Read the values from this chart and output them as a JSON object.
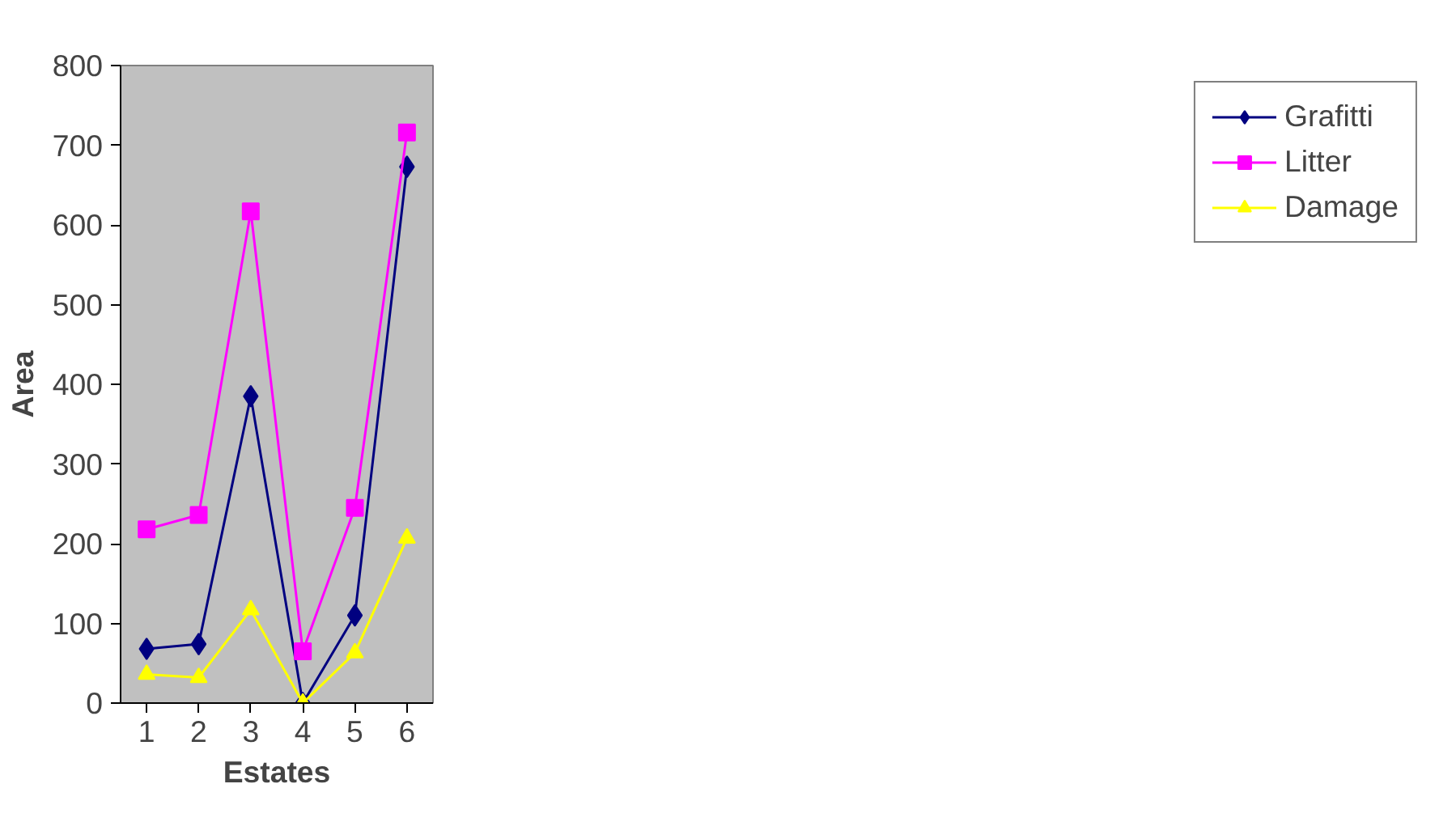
{
  "chart_data": {
    "type": "line",
    "xlabel": "Estates",
    "ylabel": "Area",
    "categories": [
      "1",
      "2",
      "3",
      "4",
      "5",
      "6"
    ],
    "series": [
      {
        "name": "Grafitti",
        "color": "#000080",
        "marker": "diamond",
        "values": [
          68,
          74,
          385,
          0,
          110,
          673
        ]
      },
      {
        "name": "Litter",
        "color": "#ff00ff",
        "marker": "square",
        "values": [
          218,
          236,
          617,
          65,
          245,
          716
        ]
      },
      {
        "name": "Damage",
        "color": "#ffff00",
        "marker": "triangle",
        "values": [
          36,
          32,
          117,
          0,
          63,
          207
        ]
      }
    ],
    "ylim": [
      0,
      800
    ],
    "yticks": [
      0,
      100,
      200,
      300,
      400,
      500,
      600,
      700,
      800
    ],
    "grid": false,
    "legend": "right",
    "line_style": "solid"
  }
}
